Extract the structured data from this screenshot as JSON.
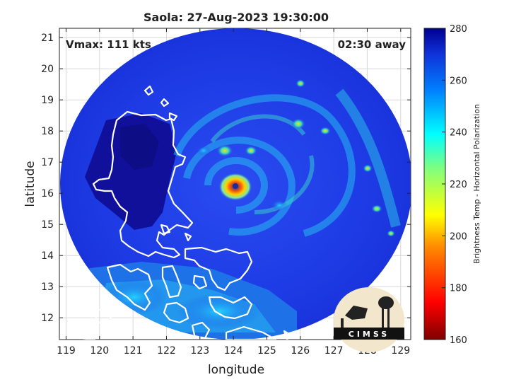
{
  "title": "Saola: 27-Aug-2023 19:30:00",
  "vmax_label": "Vmax: 111 kts",
  "time_away_label": "02:30 away",
  "xlabel": "longitude",
  "ylabel": "latitude",
  "colorbar_label": "Brightness Temp - Horizontal Polarization",
  "logo_text": "CIMSS",
  "map": {
    "lon_range": [
      118.8,
      129.3
    ],
    "lat_range": [
      11.3,
      21.3
    ],
    "lon_ticks": [
      "119",
      "120",
      "121",
      "122",
      "123",
      "124",
      "125",
      "126",
      "127",
      "128",
      "129"
    ],
    "lat_ticks": [
      "12",
      "13",
      "14",
      "15",
      "16",
      "17",
      "18",
      "19",
      "20",
      "21"
    ],
    "grid": true,
    "swath_center": [
      124.0,
      16.35
    ],
    "storm_eye": [
      124.1,
      16.2
    ]
  },
  "colorbar": {
    "range": [
      160,
      280
    ],
    "ticks": [
      "160",
      "180",
      "200",
      "220",
      "240",
      "260",
      "280"
    ],
    "colormap": "jet"
  },
  "colors": {
    "coastline": "#ffffff",
    "swath_base": "#1f3fe0",
    "land_cold": "#0d0d8f",
    "frame": "#222222"
  }
}
